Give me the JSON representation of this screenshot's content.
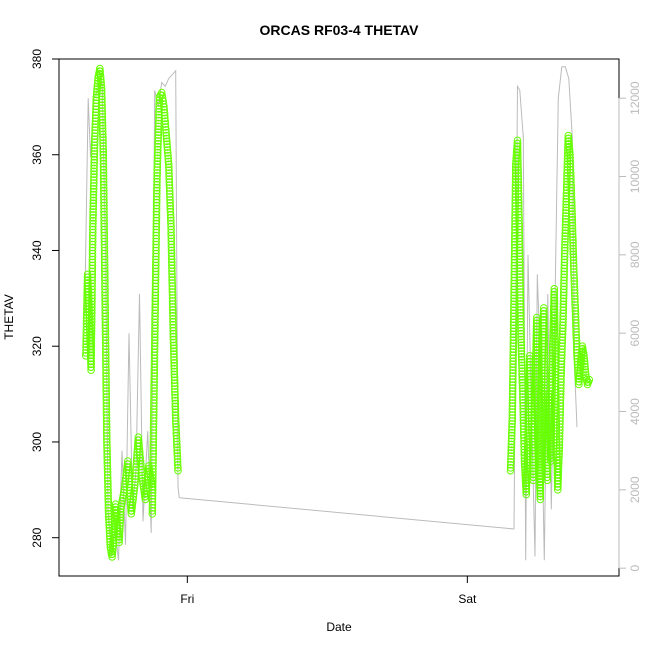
{
  "chart_data": {
    "type": "scatter",
    "title": "ORCAS RF03-4 THETAV",
    "xlabel": "Date",
    "ylabel": "THETAV",
    "x_ticks": [
      "Fri",
      "Sat"
    ],
    "x_tick_positions": [
      24.0,
      48.0
    ],
    "xlim": [
      13.0,
      61.0
    ],
    "ylim": [
      272.0,
      380.0
    ],
    "y_ticks": [
      280,
      300,
      320,
      340,
      360,
      380
    ],
    "y2lim": [
      -200,
      13000
    ],
    "y2_ticks": [
      0,
      2000,
      4000,
      6000,
      8000,
      10000,
      12000
    ],
    "grid": false,
    "legend": "none",
    "colors": {
      "points": "#66ff00",
      "secondary_line": "#bbbbbb",
      "secondary_axis": "#bbbbbb",
      "axis": "#000000"
    },
    "series": [
      {
        "role": "points-left-axis",
        "segments": [
          {
            "x": [
              15.3,
              15.45,
              15.6,
              15.75,
              15.9,
              16.05,
              16.2,
              16.35,
              16.5,
              16.65,
              16.8,
              16.95,
              17.1,
              17.25,
              17.4,
              17.55,
              17.7,
              17.85,
              18.0,
              18.15,
              18.3
            ],
            "y": [
              318,
              335,
              326,
              315,
              345,
              362,
              372,
              376,
              378,
              374,
              360,
              330,
              300,
              285,
              278,
              276,
              280,
              287,
              282,
              279,
              286
            ]
          },
          {
            "x": [
              18.3,
              18.6,
              18.9,
              19.2,
              19.5,
              19.8,
              20.1,
              20.4,
              20.7,
              21.0
            ],
            "y": [
              286,
              290,
              296,
              285,
              291,
              301,
              293,
              288,
              295,
              290
            ]
          },
          {
            "x": [
              21.0,
              21.2,
              21.4,
              21.6,
              21.8,
              22.0,
              22.2,
              22.4,
              22.6,
              22.8,
              23.0,
              23.2
            ],
            "y": [
              285,
              320,
              355,
              372,
              373,
              370,
              364,
              358,
              345,
              322,
              305,
              294
            ]
          },
          {
            "x": [
              51.7,
              51.85,
              52.0,
              52.15,
              52.3,
              52.45,
              52.6,
              52.75,
              52.9,
              53.05,
              53.2,
              53.35,
              53.5,
              53.65,
              53.8,
              53.95,
              54.1,
              54.25,
              54.4,
              54.55,
              54.7,
              54.85,
              55.0,
              55.15,
              55.3,
              55.45,
              55.6,
              55.75,
              55.9,
              56.05,
              56.2,
              56.35,
              56.5,
              56.65,
              56.8,
              56.95,
              57.1,
              57.25,
              57.4,
              57.55,
              57.7,
              57.85,
              58.0,
              58.15,
              58.3,
              58.45
            ],
            "y": [
              294,
              305,
              330,
              358,
              363,
              345,
              322,
              310,
              296,
              289,
              300,
              318,
              305,
              292,
              310,
              326,
              300,
              288,
              315,
              328,
              305,
              292,
              310,
              296,
              318,
              332,
              306,
              290,
              300,
              315,
              325,
              340,
              352,
              364,
              360,
              350,
              338,
              328,
              318,
              312,
              316,
              320,
              318,
              314,
              312,
              313
            ]
          }
        ]
      },
      {
        "role": "line-right-axis",
        "segments": [
          {
            "x": [
              15.2,
              15.5,
              15.7,
              16.0,
              16.3,
              16.7,
              17.0,
              17.2,
              17.5,
              17.8,
              18.1,
              18.4,
              18.7,
              19.0,
              19.3,
              19.6,
              19.9,
              20.2,
              20.6,
              20.9,
              21.2,
              21.5,
              21.8,
              22.1,
              22.4,
              22.7,
              23.0,
              23.2,
              23.3
            ],
            "y": [
              6500,
              12000,
              10500,
              12000,
              12200,
              12400,
              8000,
              1500,
              300,
              1000,
              200,
              3000,
              600,
              6000,
              1500,
              2500,
              7000,
              1200,
              3500,
              900,
              12200,
              11800,
              12400,
              12300,
              12500,
              12600,
              12700,
              2100,
              1800
            ]
          },
          {
            "x": [
              23.3,
              52.0
            ],
            "y": [
              1800,
              1000
            ]
          },
          {
            "x": [
              52.0,
              52.3,
              52.5,
              52.8,
              53.0,
              53.2,
              53.5,
              53.8,
              54.0,
              54.3,
              54.6,
              54.9,
              55.2,
              55.5,
              55.8,
              56.1,
              56.4,
              56.7,
              57.0,
              57.2,
              57.4
            ],
            "y": [
              1000,
              12300,
              12200,
              11000,
              200,
              8000,
              4000,
              300,
              7500,
              5000,
              200,
              7000,
              1500,
              6500,
              12000,
              12800,
              12800,
              12500,
              11000,
              5000,
              3600
            ]
          }
        ]
      }
    ]
  }
}
